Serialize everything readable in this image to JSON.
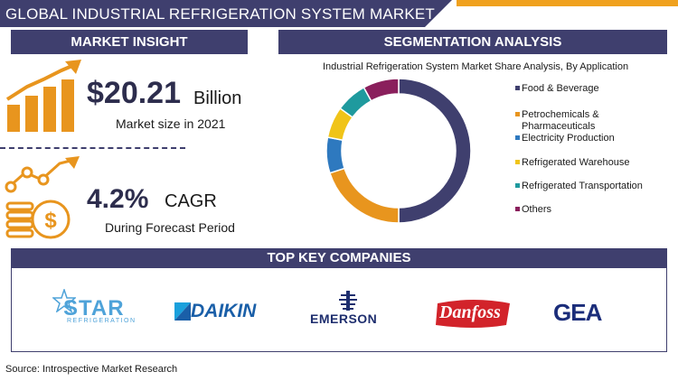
{
  "header": {
    "title": "GLOBAL INDUSTRIAL REFRIGERATION SYSTEM MARKET"
  },
  "insight": {
    "heading": "MARKET INSIGHT",
    "market_size_value": "$20.21",
    "market_size_unit": "Billion",
    "market_size_caption": "Market size in 2021",
    "cagr_value": "4.2%",
    "cagr_label": "CAGR",
    "cagr_caption": "During Forecast Period"
  },
  "segmentation": {
    "heading": "SEGMENTATION ANALYSIS"
  },
  "chart_data": {
    "type": "pie",
    "style": "donut",
    "title": "Industrial Refrigeration System Market Share Analysis, By Application",
    "categories": [
      "Food & Beverage",
      "Petrochemicals & Pharmaceuticals",
      "Electricity Production",
      "Refrigerated Warehouse",
      "Refrigerated Transportation",
      "Others"
    ],
    "values": [
      50,
      20,
      8,
      7,
      7,
      8
    ],
    "colors": [
      "#3f3f6e",
      "#e8951e",
      "#2e79bf",
      "#f0c419",
      "#1f9a9e",
      "#8a1f5c"
    ],
    "legend_position": "right"
  },
  "companies": {
    "heading": "TOP KEY COMPANIES",
    "logos": [
      {
        "name": "STAR",
        "sub": "REFRIGERATION",
        "icon": "star-logo-icon"
      },
      {
        "name": "DAIKIN",
        "icon": "daikin-logo-icon"
      },
      {
        "name": "EMERSON",
        "icon": "emerson-logo-icon"
      },
      {
        "name": "Danfoss",
        "icon": "danfoss-logo-icon"
      },
      {
        "name": "GEA",
        "icon": "gea-logo-icon"
      }
    ]
  },
  "icons": {
    "growth": "bar-growth-arrow-icon",
    "cagr": "coin-stack-growth-icon"
  },
  "colors": {
    "navy": "#3f3f6e",
    "orange": "#e8951e",
    "accent_bar": "#f0a11e"
  },
  "source": "Source: Introspective Market Research"
}
